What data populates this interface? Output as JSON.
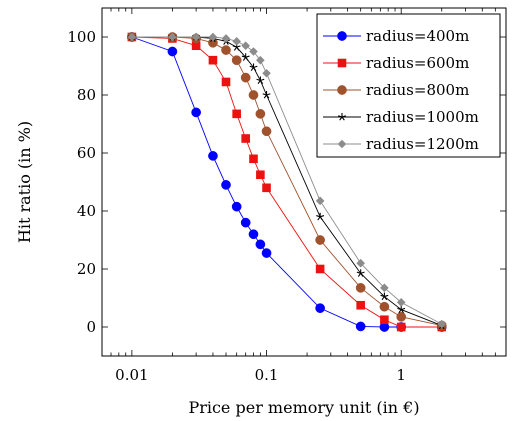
{
  "chart_data": {
    "type": "line",
    "xlabel": "Price per memory unit (in €)",
    "ylabel": "Hit ratio (in %)",
    "xscale": "log",
    "xlim": [
      0.006,
      6
    ],
    "ylim": [
      -10,
      110
    ],
    "xticks": [
      0.01,
      0.1,
      1
    ],
    "xtick_labels": [
      "0.01",
      "0.1",
      "1"
    ],
    "yticks": [
      0,
      20,
      40,
      60,
      80,
      100
    ],
    "ytick_labels": [
      "0",
      "20",
      "40",
      "60",
      "80",
      "100"
    ],
    "grid": false,
    "legend_position": "top-right",
    "series": [
      {
        "name": "radius=400m",
        "color": "#0000ff",
        "marker": "circle",
        "x": [
          0.01,
          0.02,
          0.03,
          0.04,
          0.05,
          0.06,
          0.07,
          0.08,
          0.09,
          0.1,
          0.25,
          0.5,
          0.75,
          1,
          2
        ],
        "y": [
          100,
          95,
          74,
          59,
          49,
          41.5,
          36,
          32,
          28.5,
          25.5,
          6.5,
          0.2,
          0,
          0,
          0
        ]
      },
      {
        "name": "radius=600m",
        "color": "#ee1111",
        "marker": "square",
        "x": [
          0.01,
          0.02,
          0.03,
          0.04,
          0.05,
          0.06,
          0.07,
          0.08,
          0.09,
          0.1,
          0.25,
          0.5,
          0.75,
          1,
          2
        ],
        "y": [
          100,
          99.5,
          97,
          92,
          84.5,
          73.5,
          65,
          58,
          52.5,
          48,
          20,
          7.5,
          2.5,
          0,
          0
        ]
      },
      {
        "name": "radius=800m",
        "color": "#a0522d",
        "marker": "circle",
        "x": [
          0.01,
          0.02,
          0.03,
          0.04,
          0.05,
          0.06,
          0.07,
          0.08,
          0.09,
          0.1,
          0.25,
          0.5,
          0.75,
          1,
          2
        ],
        "y": [
          100,
          100,
          99.5,
          98,
          95.5,
          92,
          86,
          80,
          73.5,
          67.5,
          30,
          13.5,
          7,
          3.5,
          0.5
        ]
      },
      {
        "name": "radius=1000m",
        "color": "#000000",
        "marker": "star",
        "x": [
          0.01,
          0.02,
          0.03,
          0.04,
          0.05,
          0.06,
          0.07,
          0.08,
          0.09,
          0.1,
          0.25,
          0.5,
          0.75,
          1,
          2
        ],
        "y": [
          100,
          100,
          100,
          99.5,
          98.5,
          96.5,
          93,
          89.5,
          85,
          80,
          38,
          18.5,
          10.5,
          6,
          0.5
        ]
      },
      {
        "name": "radius=1200m",
        "color": "#8c8c8c",
        "marker": "diamond",
        "x": [
          0.01,
          0.02,
          0.03,
          0.04,
          0.05,
          0.06,
          0.07,
          0.08,
          0.09,
          0.1,
          0.25,
          0.5,
          0.75,
          1,
          2
        ],
        "y": [
          100,
          100,
          100,
          100,
          99.5,
          98.5,
          97,
          95,
          92,
          87.5,
          43.5,
          22,
          13.5,
          8.5,
          1
        ]
      }
    ]
  }
}
